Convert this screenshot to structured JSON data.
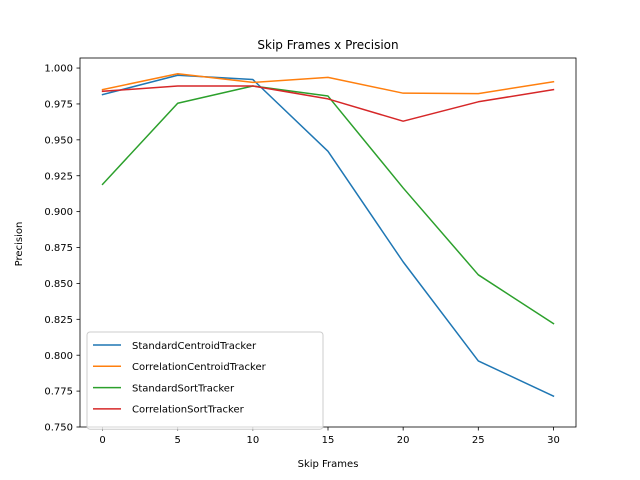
{
  "chart_data": {
    "type": "line",
    "title": "Skip Frames x Precision",
    "xlabel": "Skip Frames",
    "ylabel": "Precision",
    "x": [
      0,
      5,
      10,
      15,
      20,
      25,
      30
    ],
    "xlim": [
      -1.5,
      31.5
    ],
    "ylim": [
      0.75,
      1.007
    ],
    "xticks": [
      0,
      5,
      10,
      15,
      20,
      25,
      30
    ],
    "xtick_labels": [
      "0",
      "5",
      "10",
      "15",
      "20",
      "25",
      "30"
    ],
    "yticks": [
      0.75,
      0.775,
      0.8,
      0.825,
      0.85,
      0.875,
      0.9,
      0.925,
      0.95,
      0.975,
      1.0
    ],
    "ytick_labels": [
      "0.750",
      "0.775",
      "0.800",
      "0.825",
      "0.850",
      "0.875",
      "0.900",
      "0.925",
      "0.950",
      "0.975",
      "1.000"
    ],
    "grid": false,
    "legend_position": "lower-left",
    "series": [
      {
        "name": "StandardCentroidTracker",
        "color": "#1f77b4",
        "values": [
          0.9815,
          0.995,
          0.992,
          0.942,
          0.865,
          0.796,
          0.7715
        ]
      },
      {
        "name": "CorrelationCentroidTracker",
        "color": "#ff7f0e",
        "values": [
          0.985,
          0.996,
          0.99,
          0.9935,
          0.9825,
          0.9822,
          0.9905
        ]
      },
      {
        "name": "StandardSortTracker",
        "color": "#2ca02c",
        "values": [
          0.919,
          0.9755,
          0.9875,
          0.9805,
          0.9165,
          0.856,
          0.822
        ]
      },
      {
        "name": "CorrelationSortTracker",
        "color": "#d62728",
        "values": [
          0.9838,
          0.9875,
          0.9875,
          0.9785,
          0.963,
          0.9765,
          0.985
        ]
      }
    ]
  }
}
